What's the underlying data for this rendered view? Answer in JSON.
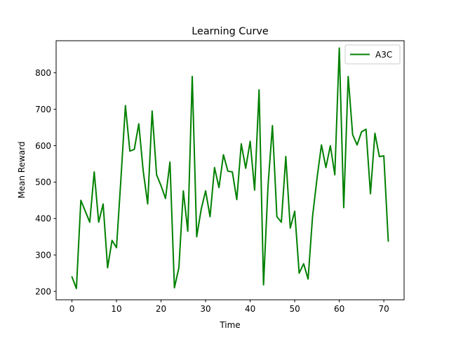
{
  "chart_data": {
    "type": "line",
    "title": "Learning Curve",
    "xlabel": "Time",
    "ylabel": "Mean Reward",
    "xlim": [
      -3.55,
      74.55
    ],
    "ylim": [
      177,
      888
    ],
    "xticks": [
      0,
      10,
      20,
      30,
      40,
      50,
      60,
      70
    ],
    "yticks": [
      200,
      300,
      400,
      500,
      600,
      700,
      800
    ],
    "grid": false,
    "legend_position": "top-right",
    "series": [
      {
        "name": "A3C",
        "color": "#008000",
        "x": [
          0,
          1,
          2,
          3,
          4,
          5,
          6,
          7,
          8,
          9,
          10,
          11,
          12,
          13,
          14,
          15,
          16,
          17,
          18,
          19,
          20,
          21,
          22,
          23,
          24,
          25,
          26,
          27,
          28,
          29,
          30,
          31,
          32,
          33,
          34,
          35,
          36,
          37,
          38,
          39,
          40,
          41,
          42,
          43,
          44,
          45,
          46,
          47,
          48,
          49,
          50,
          51,
          52,
          53,
          54,
          55,
          56,
          57,
          58,
          59,
          60,
          61,
          62,
          63,
          64,
          65,
          66,
          67,
          68,
          69,
          70,
          71
        ],
        "values": [
          240,
          208,
          450,
          420,
          390,
          528,
          390,
          440,
          265,
          340,
          320,
          510,
          710,
          585,
          590,
          660,
          530,
          440,
          695,
          520,
          490,
          455,
          555,
          210,
          265,
          476,
          365,
          790,
          350,
          425,
          476,
          405,
          540,
          485,
          575,
          530,
          528,
          452,
          605,
          538,
          612,
          478,
          753,
          218,
          488,
          655,
          405,
          390,
          570,
          374,
          420,
          250,
          276,
          234,
          405,
          510,
          602,
          540,
          600,
          520,
          868,
          430,
          790,
          630,
          602,
          638,
          645,
          468,
          634,
          570,
          572,
          338
        ]
      }
    ]
  }
}
